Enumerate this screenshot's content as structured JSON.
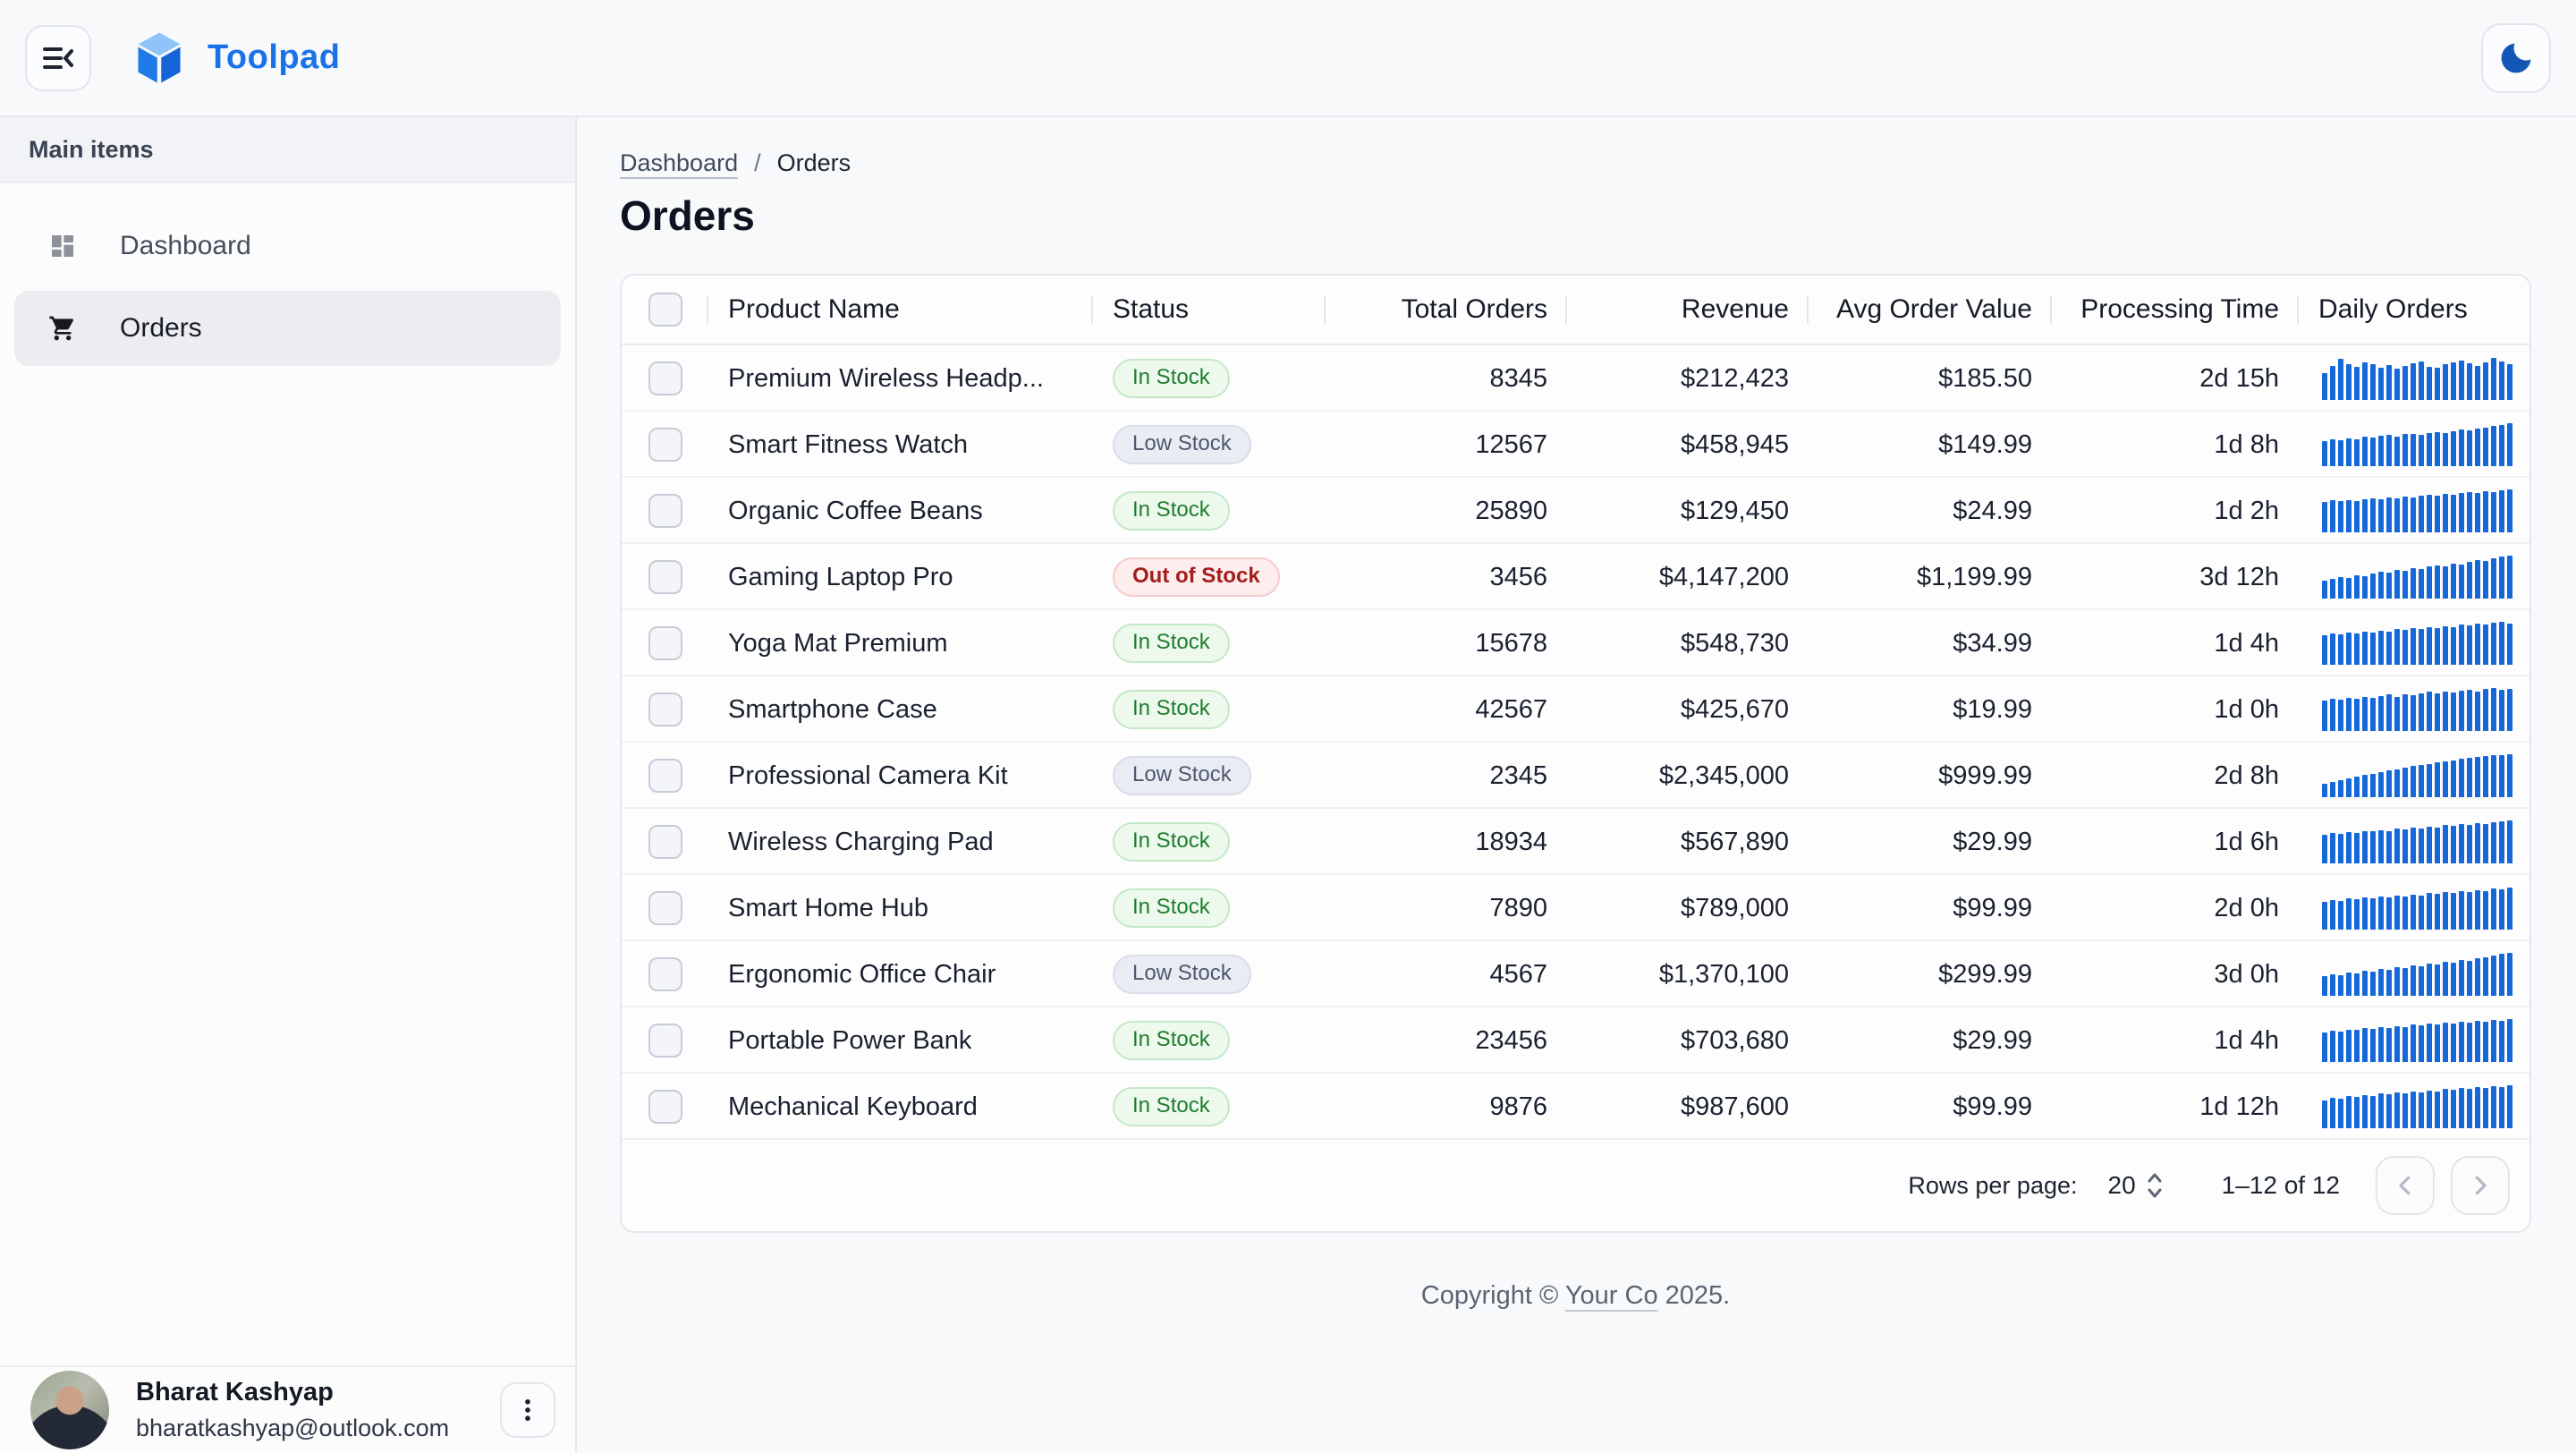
{
  "app": {
    "brand": "Toolpad"
  },
  "colors": {
    "primary": "#1a72e8",
    "spark": "#1668d8",
    "moon": "#1257b5",
    "in-bg": "#eef9ee",
    "in-bd": "#c4e8c7",
    "in-fg": "#1d7d2c",
    "low-bg": "#e9ecf3",
    "low-bd": "#d9dde8",
    "low-fg": "#4d586f",
    "out-bg": "#fdeded",
    "out-bd": "#f5caca",
    "out-fg": "#a31d1d"
  },
  "sidebar": {
    "section_label": "Main items",
    "items": [
      {
        "label": "Dashboard",
        "selected": false
      },
      {
        "label": "Orders",
        "selected": true
      }
    ],
    "user": {
      "name": "Bharat Kashyap",
      "email": "bharatkashyap@outlook.com"
    }
  },
  "breadcrumb": {
    "link": "Dashboard",
    "separator": "/",
    "current": "Orders"
  },
  "page": {
    "title": "Orders"
  },
  "table": {
    "columns": [
      {
        "label": "Product Name"
      },
      {
        "label": "Status"
      },
      {
        "label": "Total Orders"
      },
      {
        "label": "Revenue"
      },
      {
        "label": "Avg Order Value"
      },
      {
        "label": "Processing Time"
      },
      {
        "label": "Daily Orders"
      }
    ],
    "rows": [
      {
        "product": "Premium Wireless Headp...",
        "status": "In Stock",
        "variant": "in",
        "total_orders": "8345",
        "revenue": "$212,423",
        "avg_order_value": "$185.50",
        "processing_time": "2d 15h",
        "daily_orders": [
          62,
          80,
          95,
          84,
          78,
          88,
          84,
          75,
          82,
          72,
          80,
          86,
          90,
          78,
          74,
          84,
          88,
          92,
          85,
          79,
          88,
          97,
          90,
          84
        ]
      },
      {
        "product": "Smart Fitness Watch",
        "status": "Low Stock",
        "variant": "low",
        "total_orders": "12567",
        "revenue": "$458,945",
        "avg_order_value": "$149.99",
        "processing_time": "1d 8h",
        "daily_orders": [
          58,
          62,
          60,
          65,
          63,
          68,
          66,
          70,
          72,
          69,
          74,
          76,
          73,
          78,
          80,
          77,
          82,
          85,
          83,
          88,
          90,
          93,
          96,
          100
        ]
      },
      {
        "product": "Organic Coffee Beans",
        "status": "In Stock",
        "variant": "in",
        "total_orders": "25890",
        "revenue": "$129,450",
        "avg_order_value": "$24.99",
        "processing_time": "1d 2h",
        "daily_orders": [
          70,
          74,
          72,
          76,
          73,
          78,
          80,
          77,
          82,
          79,
          84,
          81,
          86,
          88,
          85,
          90,
          87,
          92,
          94,
          91,
          96,
          93,
          98,
          100
        ]
      },
      {
        "product": "Gaming Laptop Pro",
        "status": "Out of Stock",
        "variant": "out",
        "total_orders": "3456",
        "revenue": "$4,147,200",
        "avg_order_value": "$1,199.99",
        "processing_time": "3d 12h",
        "daily_orders": [
          42,
          46,
          50,
          48,
          54,
          52,
          58,
          62,
          60,
          66,
          64,
          70,
          68,
          74,
          78,
          76,
          82,
          80,
          86,
          90,
          88,
          94,
          97,
          100
        ]
      },
      {
        "product": "Yoga Mat Premium",
        "status": "In Stock",
        "variant": "in",
        "total_orders": "15678",
        "revenue": "$548,730",
        "avg_order_value": "$34.99",
        "processing_time": "1d 4h",
        "daily_orders": [
          68,
          72,
          70,
          75,
          73,
          78,
          76,
          80,
          78,
          83,
          81,
          86,
          84,
          88,
          86,
          90,
          88,
          93,
          91,
          95,
          93,
          97,
          100,
          96
        ]
      },
      {
        "product": "Smartphone Case",
        "status": "In Stock",
        "variant": "in",
        "total_orders": "42567",
        "revenue": "$425,670",
        "avg_order_value": "$19.99",
        "processing_time": "1d 0h",
        "daily_orders": [
          70,
          74,
          72,
          77,
          75,
          80,
          78,
          82,
          85,
          80,
          86,
          83,
          88,
          91,
          87,
          92,
          89,
          94,
          96,
          92,
          97,
          100,
          95,
          98
        ]
      },
      {
        "product": "Professional Camera Kit",
        "status": "Low Stock",
        "variant": "low",
        "total_orders": "2345",
        "revenue": "$2,345,000",
        "avg_order_value": "$999.99",
        "processing_time": "2d 8h",
        "daily_orders": [
          32,
          36,
          40,
          44,
          48,
          52,
          55,
          58,
          62,
          65,
          68,
          72,
          75,
          78,
          81,
          84,
          86,
          89,
          91,
          93,
          95,
          97,
          98,
          100
        ]
      },
      {
        "product": "Wireless Charging Pad",
        "status": "In Stock",
        "variant": "in",
        "total_orders": "18934",
        "revenue": "$567,890",
        "avg_order_value": "$29.99",
        "processing_time": "1d 6h",
        "daily_orders": [
          66,
          70,
          68,
          73,
          71,
          76,
          74,
          78,
          76,
          81,
          79,
          84,
          82,
          86,
          84,
          89,
          87,
          91,
          89,
          94,
          92,
          96,
          98,
          100
        ]
      },
      {
        "product": "Smart Home Hub",
        "status": "In Stock",
        "variant": "in",
        "total_orders": "7890",
        "revenue": "$789,000",
        "avg_order_value": "$99.99",
        "processing_time": "2d 0h",
        "daily_orders": [
          64,
          69,
          67,
          72,
          70,
          75,
          73,
          77,
          75,
          80,
          78,
          82,
          80,
          85,
          83,
          87,
          85,
          90,
          88,
          92,
          90,
          95,
          93,
          97
        ]
      },
      {
        "product": "Ergonomic Office Chair",
        "status": "Low Stock",
        "variant": "low",
        "total_orders": "4567",
        "revenue": "$1,370,100",
        "avg_order_value": "$299.99",
        "processing_time": "3d 0h",
        "daily_orders": [
          46,
          50,
          48,
          55,
          53,
          59,
          57,
          63,
          61,
          67,
          65,
          71,
          69,
          75,
          73,
          79,
          77,
          83,
          81,
          87,
          90,
          94,
          97,
          100
        ]
      },
      {
        "product": "Portable Power Bank",
        "status": "In Stock",
        "variant": "in",
        "total_orders": "23456",
        "revenue": "$703,680",
        "avg_order_value": "$29.99",
        "processing_time": "1d 4h",
        "daily_orders": [
          68,
          72,
          70,
          76,
          74,
          79,
          77,
          82,
          80,
          84,
          82,
          87,
          85,
          89,
          87,
          92,
          90,
          94,
          92,
          96,
          94,
          98,
          96,
          100
        ]
      },
      {
        "product": "Mechanical Keyboard",
        "status": "In Stock",
        "variant": "in",
        "total_orders": "9876",
        "revenue": "$987,600",
        "avg_order_value": "$99.99",
        "processing_time": "1d 12h",
        "daily_orders": [
          65,
          71,
          69,
          75,
          73,
          78,
          76,
          81,
          79,
          83,
          81,
          86,
          84,
          88,
          86,
          91,
          89,
          93,
          91,
          95,
          93,
          98,
          96,
          100
        ]
      }
    ],
    "pagination": {
      "rows_per_page_label": "Rows per page:",
      "rows_per_page_value": "20",
      "range_label": "1–12 of 12"
    }
  },
  "footer": {
    "prefix": "Copyright © ",
    "company": "Your Co",
    "suffix": " 2025."
  }
}
